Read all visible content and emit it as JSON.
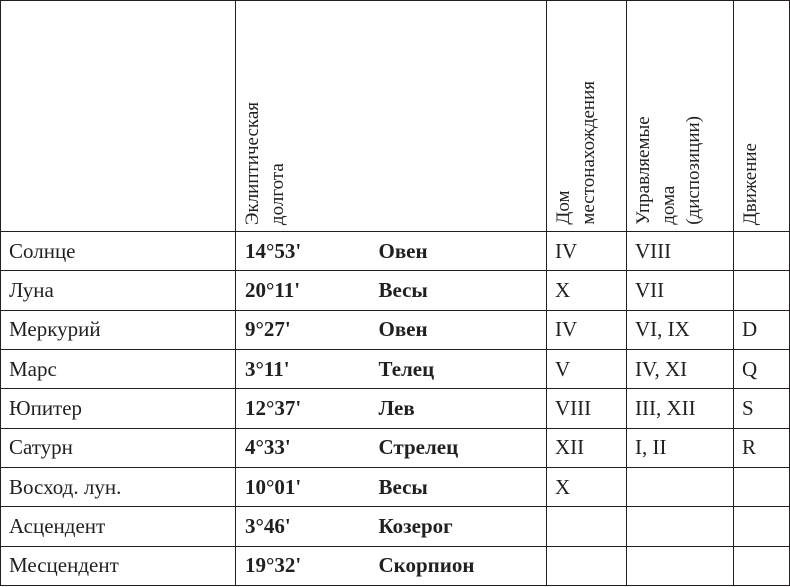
{
  "headers": {
    "longitude": [
      "Эклиптическая",
      "долгота"
    ],
    "house": [
      "Дом",
      "местонахождения"
    ],
    "ruled": [
      "Управляемые",
      "дома",
      "(диспозиции)"
    ],
    "motion": [
      "Движение"
    ]
  },
  "rows": [
    {
      "planet": "Солнце",
      "longitude": "14°53'",
      "sign": "Овен",
      "house": "IV",
      "ruled": "VIII",
      "motion": ""
    },
    {
      "planet": "Луна",
      "longitude": "20°11'",
      "sign": "Весы",
      "house": "X",
      "ruled": "VII",
      "motion": ""
    },
    {
      "planet": "Меркурий",
      "longitude": "9°27'",
      "sign": "Овен",
      "house": "IV",
      "ruled": "VI, IX",
      "motion": "D"
    },
    {
      "planet": "Марс",
      "longitude": "3°11'",
      "sign": "Телец",
      "house": "V",
      "ruled": "IV, XI",
      "motion": "Q"
    },
    {
      "planet": "Юпитер",
      "longitude": "12°37'",
      "sign": "Лев",
      "house": "VIII",
      "ruled": "III, XII",
      "motion": "S"
    },
    {
      "planet": "Сатурн",
      "longitude": "4°33'",
      "sign": "Стрелец",
      "house": "XII",
      "ruled": "I, II",
      "motion": "R"
    },
    {
      "planet": "Восход. лун.",
      "longitude": "10°01'",
      "sign": "Весы",
      "house": "X",
      "ruled": "",
      "motion": ""
    },
    {
      "planet": "Асцендент",
      "longitude": "3°46'",
      "sign": "Козерог",
      "house": "",
      "ruled": "",
      "motion": ""
    },
    {
      "planet": "Месцендент",
      "longitude": "19°32'",
      "sign": "Скорпион",
      "house": "",
      "ruled": "",
      "motion": ""
    }
  ]
}
